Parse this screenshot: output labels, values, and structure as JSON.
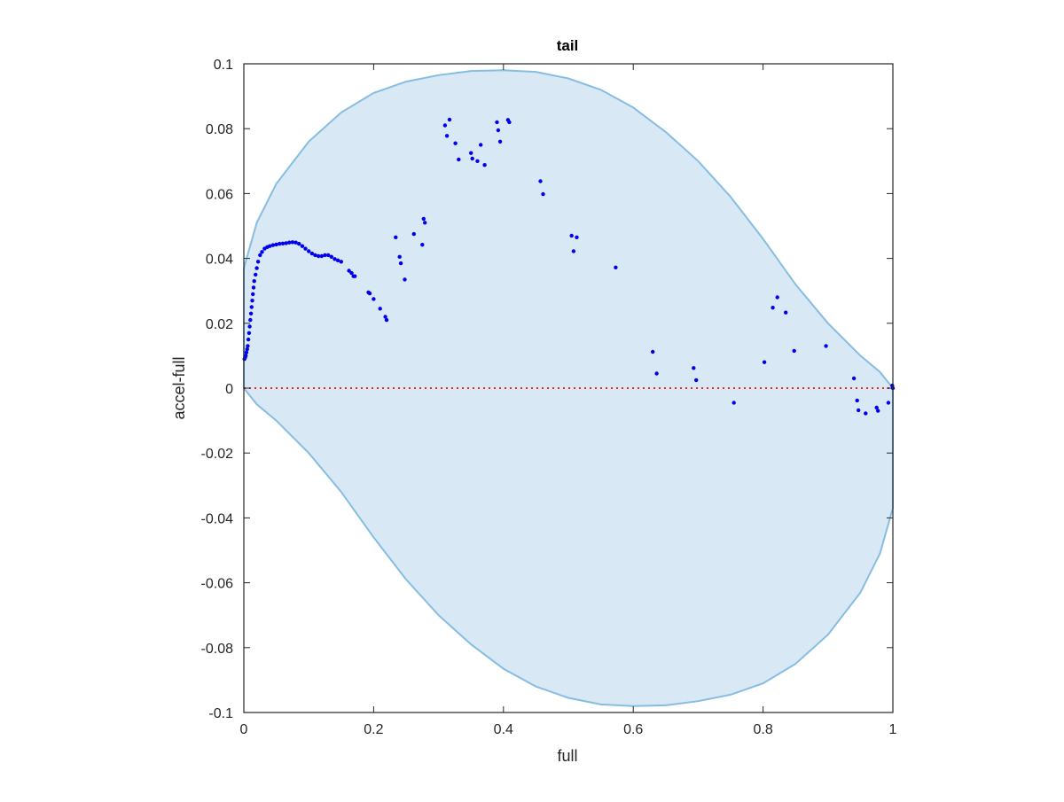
{
  "chart_data": {
    "type": "scatter",
    "title": "tail",
    "xlabel": "full",
    "ylabel": "accel-full",
    "xlim": [
      0,
      1
    ],
    "ylim": [
      -0.1,
      0.1
    ],
    "x_ticks": [
      0,
      0.2,
      0.4,
      0.6,
      0.8,
      1
    ],
    "x_tick_labels": [
      "0",
      "0.2",
      "0.4",
      "0.6",
      "0.8",
      "1"
    ],
    "y_ticks": [
      -0.1,
      -0.08,
      -0.06,
      -0.04,
      -0.02,
      0,
      0.02,
      0.04,
      0.06,
      0.08,
      0.1
    ],
    "y_tick_labels": [
      "-0.1",
      "-0.08",
      "-0.06",
      "-0.04",
      "-0.02",
      "0",
      "0.02",
      "0.04",
      "0.06",
      "0.08",
      "0.1"
    ],
    "grid": false,
    "colors": {
      "points": "#0000ee",
      "region_fill": "#d8e8f4",
      "region_stroke": "#86bde0",
      "zero_line": "#ee2222",
      "axes": "#262626"
    },
    "reference_line": {
      "y": 0,
      "style": "dotted"
    },
    "region": {
      "shape": "closed-boundary",
      "points": [
        [
          0.0,
          0.037
        ],
        [
          0.02,
          0.051
        ],
        [
          0.05,
          0.063
        ],
        [
          0.1,
          0.076
        ],
        [
          0.15,
          0.085
        ],
        [
          0.2,
          0.091
        ],
        [
          0.25,
          0.0945
        ],
        [
          0.3,
          0.0965
        ],
        [
          0.35,
          0.0978
        ],
        [
          0.4,
          0.098
        ],
        [
          0.45,
          0.0975
        ],
        [
          0.5,
          0.0955
        ],
        [
          0.55,
          0.092
        ],
        [
          0.6,
          0.0865
        ],
        [
          0.65,
          0.079
        ],
        [
          0.7,
          0.07
        ],
        [
          0.75,
          0.059
        ],
        [
          0.8,
          0.046
        ],
        [
          0.85,
          0.032
        ],
        [
          0.9,
          0.02
        ],
        [
          0.95,
          0.01
        ],
        [
          0.98,
          0.005
        ],
        [
          1.0,
          0.0
        ],
        [
          1.0,
          -0.037
        ],
        [
          0.98,
          -0.051
        ],
        [
          0.95,
          -0.063
        ],
        [
          0.9,
          -0.076
        ],
        [
          0.85,
          -0.085
        ],
        [
          0.8,
          -0.091
        ],
        [
          0.75,
          -0.0945
        ],
        [
          0.7,
          -0.0965
        ],
        [
          0.65,
          -0.0978
        ],
        [
          0.6,
          -0.098
        ],
        [
          0.55,
          -0.0975
        ],
        [
          0.5,
          -0.0955
        ],
        [
          0.45,
          -0.092
        ],
        [
          0.4,
          -0.0865
        ],
        [
          0.35,
          -0.079
        ],
        [
          0.3,
          -0.07
        ],
        [
          0.25,
          -0.059
        ],
        [
          0.2,
          -0.046
        ],
        [
          0.15,
          -0.032
        ],
        [
          0.1,
          -0.02
        ],
        [
          0.05,
          -0.01
        ],
        [
          0.02,
          -0.005
        ],
        [
          0.0,
          0.0
        ]
      ]
    },
    "series": [
      {
        "points": [
          [
            0.001,
            0.009
          ],
          [
            0.002,
            0.0095
          ],
          [
            0.003,
            0.01
          ],
          [
            0.004,
            0.011
          ],
          [
            0.005,
            0.012
          ],
          [
            0.006,
            0.013
          ],
          [
            0.007,
            0.015
          ],
          [
            0.008,
            0.017
          ],
          [
            0.009,
            0.019
          ],
          [
            0.01,
            0.021
          ],
          [
            0.011,
            0.023
          ],
          [
            0.012,
            0.025
          ],
          [
            0.013,
            0.027
          ],
          [
            0.014,
            0.029
          ],
          [
            0.015,
            0.031
          ],
          [
            0.016,
            0.033
          ],
          [
            0.018,
            0.035
          ],
          [
            0.02,
            0.037
          ],
          [
            0.022,
            0.039
          ],
          [
            0.025,
            0.041
          ],
          [
            0.028,
            0.042
          ],
          [
            0.032,
            0.043
          ],
          [
            0.036,
            0.0435
          ],
          [
            0.04,
            0.0438
          ],
          [
            0.045,
            0.0441
          ],
          [
            0.05,
            0.0443
          ],
          [
            0.055,
            0.0445
          ],
          [
            0.06,
            0.0446
          ],
          [
            0.065,
            0.0447
          ],
          [
            0.07,
            0.0449
          ],
          [
            0.075,
            0.045
          ],
          [
            0.08,
            0.0449
          ],
          [
            0.085,
            0.0445
          ],
          [
            0.09,
            0.0438
          ],
          [
            0.095,
            0.043
          ],
          [
            0.1,
            0.0422
          ],
          [
            0.105,
            0.0415
          ],
          [
            0.11,
            0.041
          ],
          [
            0.115,
            0.0407
          ],
          [
            0.12,
            0.0407
          ],
          [
            0.125,
            0.041
          ],
          [
            0.13,
            0.041
          ],
          [
            0.135,
            0.0405
          ],
          [
            0.14,
            0.0398
          ],
          [
            0.145,
            0.0394
          ],
          [
            0.15,
            0.039
          ],
          [
            0.162,
            0.0362
          ],
          [
            0.166,
            0.0355
          ],
          [
            0.169,
            0.0345
          ],
          [
            0.171,
            0.0345
          ],
          [
            0.192,
            0.0295
          ],
          [
            0.194,
            0.0292
          ],
          [
            0.2,
            0.0275
          ],
          [
            0.21,
            0.0245
          ],
          [
            0.218,
            0.022
          ],
          [
            0.22,
            0.021
          ],
          [
            0.234,
            0.0465
          ],
          [
            0.24,
            0.0405
          ],
          [
            0.242,
            0.0385
          ],
          [
            0.248,
            0.0335
          ],
          [
            0.262,
            0.0475
          ],
          [
            0.275,
            0.0442
          ],
          [
            0.277,
            0.0522
          ],
          [
            0.279,
            0.051
          ],
          [
            0.31,
            0.081
          ],
          [
            0.313,
            0.0778
          ],
          [
            0.317,
            0.0828
          ],
          [
            0.326,
            0.0755
          ],
          [
            0.331,
            0.0705
          ],
          [
            0.35,
            0.0725
          ],
          [
            0.352,
            0.0708
          ],
          [
            0.36,
            0.07
          ],
          [
            0.365,
            0.075
          ],
          [
            0.371,
            0.0688
          ],
          [
            0.39,
            0.082
          ],
          [
            0.392,
            0.0795
          ],
          [
            0.395,
            0.076
          ],
          [
            0.407,
            0.0827
          ],
          [
            0.409,
            0.082
          ],
          [
            0.457,
            0.0638
          ],
          [
            0.461,
            0.0598
          ],
          [
            0.505,
            0.047
          ],
          [
            0.508,
            0.0422
          ],
          [
            0.513,
            0.0465
          ],
          [
            0.573,
            0.0372
          ],
          [
            0.63,
            0.0112
          ],
          [
            0.636,
            0.0045
          ],
          [
            0.693,
            0.0062
          ],
          [
            0.697,
            0.0025
          ],
          [
            0.755,
            -0.0045
          ],
          [
            0.802,
            0.008
          ],
          [
            0.815,
            0.0248
          ],
          [
            0.822,
            0.028
          ],
          [
            0.835,
            0.0233
          ],
          [
            0.848,
            0.0115
          ],
          [
            0.897,
            0.013
          ],
          [
            0.94,
            0.003
          ],
          [
            0.945,
            -0.0038
          ],
          [
            0.947,
            -0.0068
          ],
          [
            0.958,
            -0.0078
          ],
          [
            0.975,
            -0.006
          ],
          [
            0.977,
            -0.007
          ],
          [
            0.993,
            -0.0045
          ],
          [
            0.999,
            0.0008
          ],
          [
            1.0,
            0.0
          ]
        ]
      }
    ]
  }
}
